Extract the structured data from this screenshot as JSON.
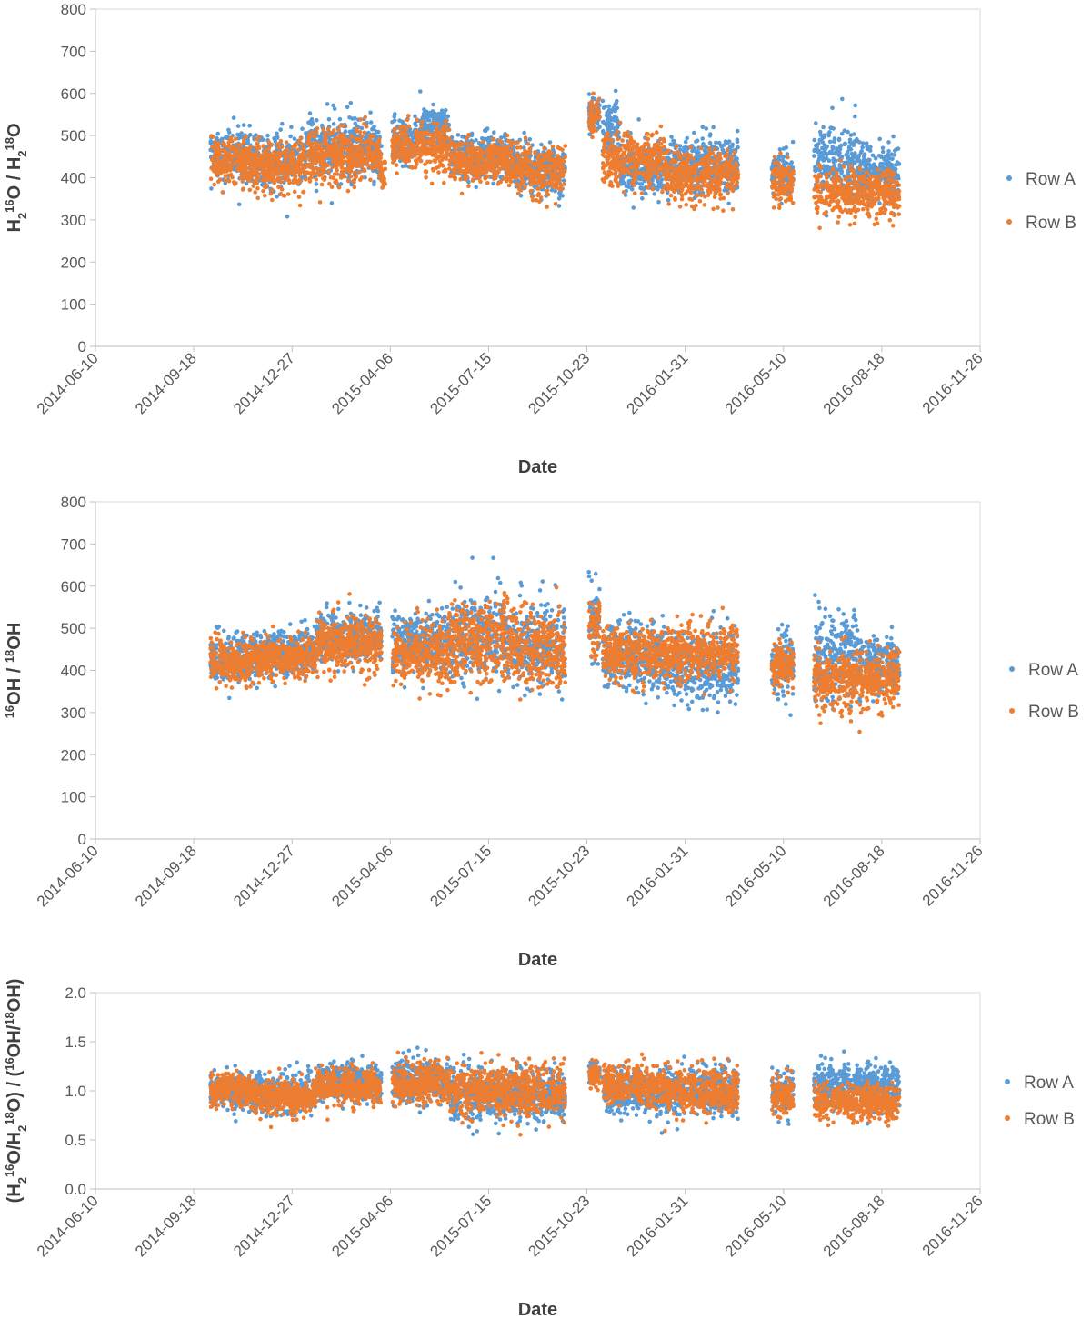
{
  "colors": {
    "row_a": "#5b9bd5",
    "row_b": "#ed7d31",
    "axis": "#d9d9d9",
    "text": "#595959"
  },
  "chart_data": [
    {
      "type": "scatter",
      "title": "",
      "xlabel": "Date",
      "ylabel_main": "H",
      "ylabel_sub": "2",
      "ylabel_sup": "16",
      "ylabel_mid": "O / H",
      "ylabel_sub2": "2",
      "ylabel_sup2": "18",
      "ylabel_end": "O",
      "x_ticks": [
        "2014-06-10",
        "2014-09-18",
        "2014-12-27",
        "2015-04-06",
        "2015-07-15",
        "2015-10-23",
        "2016-01-31",
        "2016-05-10",
        "2016-08-18",
        "2016-11-26"
      ],
      "y_ticks": [
        "0",
        "100",
        "200",
        "300",
        "400",
        "500",
        "600",
        "700",
        "800"
      ],
      "ylim": [
        0,
        800
      ],
      "xlim": [
        "2014-06-10",
        "2016-11-26"
      ],
      "legend": {
        "position": "right",
        "entries": [
          "Row A",
          "Row B"
        ]
      },
      "series": [
        {
          "name": "Row A",
          "segments": [
            {
              "start": "2014-10-05",
              "end": "2014-11-15",
              "mean": 455,
              "spread": 65
            },
            {
              "start": "2014-11-15",
              "end": "2015-01-10",
              "mean": 440,
              "spread": 70
            },
            {
              "start": "2015-01-10",
              "end": "2015-03-28",
              "mean": 470,
              "spread": 75
            },
            {
              "start": "2015-04-08",
              "end": "2015-05-05",
              "mean": 485,
              "spread": 60
            },
            {
              "start": "2015-05-05",
              "end": "2015-06-05",
              "mean": 520,
              "spread": 55
            },
            {
              "start": "2015-06-05",
              "end": "2015-08-10",
              "mean": 455,
              "spread": 55
            },
            {
              "start": "2015-08-10",
              "end": "2015-10-01",
              "mean": 420,
              "spread": 60
            },
            {
              "start": "2015-10-25",
              "end": "2015-11-05",
              "mean": 555,
              "spread": 40
            },
            {
              "start": "2015-11-08",
              "end": "2015-11-25",
              "mean": 520,
              "spread": 80
            },
            {
              "start": "2015-11-25",
              "end": "2016-01-10",
              "mean": 420,
              "spread": 70
            },
            {
              "start": "2016-01-10",
              "end": "2016-03-25",
              "mean": 430,
              "spread": 70
            },
            {
              "start": "2016-04-28",
              "end": "2016-05-20",
              "mean": 410,
              "spread": 60
            },
            {
              "start": "2016-06-10",
              "end": "2016-07-25",
              "mean": 440,
              "spread": 90
            },
            {
              "start": "2016-07-25",
              "end": "2016-09-05",
              "mean": 410,
              "spread": 70
            }
          ]
        },
        {
          "name": "Row B",
          "segments": [
            {
              "start": "2014-10-05",
              "end": "2014-11-15",
              "mean": 440,
              "spread": 60
            },
            {
              "start": "2014-11-15",
              "end": "2015-01-10",
              "mean": 425,
              "spread": 65
            },
            {
              "start": "2015-01-10",
              "end": "2015-03-28",
              "mean": 450,
              "spread": 70
            },
            {
              "start": "2015-03-28",
              "end": "2015-04-01",
              "mean": 400,
              "spread": 40
            },
            {
              "start": "2015-04-08",
              "end": "2015-06-05",
              "mean": 475,
              "spread": 60
            },
            {
              "start": "2015-06-05",
              "end": "2015-08-10",
              "mean": 435,
              "spread": 55
            },
            {
              "start": "2015-08-10",
              "end": "2015-10-01",
              "mean": 415,
              "spread": 60
            },
            {
              "start": "2015-10-25",
              "end": "2015-11-05",
              "mean": 545,
              "spread": 45
            },
            {
              "start": "2015-11-08",
              "end": "2016-01-10",
              "mean": 445,
              "spread": 70
            },
            {
              "start": "2016-01-10",
              "end": "2016-03-25",
              "mean": 405,
              "spread": 60
            },
            {
              "start": "2016-04-28",
              "end": "2016-05-20",
              "mean": 390,
              "spread": 55
            },
            {
              "start": "2016-06-10",
              "end": "2016-09-05",
              "mean": 365,
              "spread": 60
            }
          ]
        }
      ]
    },
    {
      "type": "scatter",
      "title": "",
      "xlabel": "Date",
      "ylabel_sup": "16",
      "ylabel_mid": "OH / ",
      "ylabel_sup2": "18",
      "ylabel_end": "OH",
      "x_ticks": [
        "2014-06-10",
        "2014-09-18",
        "2014-12-27",
        "2015-04-06",
        "2015-07-15",
        "2015-10-23",
        "2016-01-31",
        "2016-05-10",
        "2016-08-18",
        "2016-11-26"
      ],
      "y_ticks": [
        "0",
        "100",
        "200",
        "300",
        "400",
        "500",
        "600",
        "700",
        "800"
      ],
      "ylim": [
        0,
        800
      ],
      "xlim": [
        "2014-06-10",
        "2016-11-26"
      ],
      "legend": {
        "position": "right",
        "entries": [
          "Row A",
          "Row B"
        ]
      },
      "series": [
        {
          "name": "Row A",
          "segments": [
            {
              "start": "2014-10-05",
              "end": "2014-11-15",
              "mean": 430,
              "spread": 60
            },
            {
              "start": "2014-11-15",
              "end": "2015-01-20",
              "mean": 440,
              "spread": 60
            },
            {
              "start": "2015-01-20",
              "end": "2015-03-28",
              "mean": 480,
              "spread": 65
            },
            {
              "start": "2015-04-08",
              "end": "2015-06-05",
              "mean": 470,
              "spread": 75
            },
            {
              "start": "2015-06-05",
              "end": "2015-08-10",
              "mean": 480,
              "spread": 110
            },
            {
              "start": "2015-08-10",
              "end": "2015-10-01",
              "mean": 460,
              "spread": 100
            },
            {
              "start": "2015-10-25",
              "end": "2015-11-05",
              "mean": 520,
              "spread": 90
            },
            {
              "start": "2015-11-08",
              "end": "2016-01-10",
              "mean": 430,
              "spread": 80
            },
            {
              "start": "2016-01-10",
              "end": "2016-03-25",
              "mean": 410,
              "spread": 90
            },
            {
              "start": "2016-04-28",
              "end": "2016-05-20",
              "mean": 420,
              "spread": 90
            },
            {
              "start": "2016-06-10",
              "end": "2016-07-25",
              "mean": 440,
              "spread": 110
            },
            {
              "start": "2016-07-25",
              "end": "2016-09-05",
              "mean": 410,
              "spread": 80
            }
          ]
        },
        {
          "name": "Row B",
          "segments": [
            {
              "start": "2014-10-05",
              "end": "2014-11-15",
              "mean": 420,
              "spread": 55
            },
            {
              "start": "2014-11-15",
              "end": "2015-01-20",
              "mean": 430,
              "spread": 55
            },
            {
              "start": "2015-01-20",
              "end": "2015-03-28",
              "mean": 460,
              "spread": 70
            },
            {
              "start": "2015-04-08",
              "end": "2015-06-05",
              "mean": 440,
              "spread": 75
            },
            {
              "start": "2015-06-05",
              "end": "2015-08-10",
              "mean": 470,
              "spread": 110
            },
            {
              "start": "2015-08-10",
              "end": "2015-10-01",
              "mean": 450,
              "spread": 100
            },
            {
              "start": "2015-10-25",
              "end": "2015-11-05",
              "mean": 500,
              "spread": 80
            },
            {
              "start": "2015-11-08",
              "end": "2016-01-10",
              "mean": 440,
              "spread": 70
            },
            {
              "start": "2016-01-10",
              "end": "2016-03-25",
              "mean": 440,
              "spread": 70
            },
            {
              "start": "2016-04-28",
              "end": "2016-05-20",
              "mean": 410,
              "spread": 60
            },
            {
              "start": "2016-06-10",
              "end": "2016-09-05",
              "mean": 380,
              "spread": 75
            }
          ]
        }
      ]
    },
    {
      "type": "scatter",
      "title": "",
      "xlabel": "Date",
      "ylabel_main": "(H",
      "ylabel_sub": "2",
      "ylabel_sup": "16",
      "ylabel_mid": "O/H",
      "ylabel_sub2": "2",
      "ylabel_sup2": "18",
      "ylabel_mid2": "O) / (",
      "ylabel_sup3": "16",
      "ylabel_mid3": "OH/",
      "ylabel_sup4": "18",
      "ylabel_end": "OH)",
      "x_ticks": [
        "2014-06-10",
        "2014-09-18",
        "2014-12-27",
        "2015-04-06",
        "2015-07-15",
        "2015-10-23",
        "2016-01-31",
        "2016-05-10",
        "2016-08-18",
        "2016-11-26"
      ],
      "y_ticks": [
        "0.0",
        "0.5",
        "1.0",
        "1.5",
        "2.0"
      ],
      "ylim": [
        0,
        2
      ],
      "xlim": [
        "2014-06-10",
        "2016-11-26"
      ],
      "legend": {
        "position": "right",
        "entries": [
          "Row A",
          "Row B"
        ]
      },
      "series": [
        {
          "name": "Row A",
          "segments": [
            {
              "start": "2014-10-05",
              "end": "2014-11-15",
              "mean": 1.0,
              "spread": 0.2
            },
            {
              "start": "2014-11-15",
              "end": "2015-01-20",
              "mean": 0.97,
              "spread": 0.22
            },
            {
              "start": "2015-01-20",
              "end": "2015-03-28",
              "mean": 1.08,
              "spread": 0.2
            },
            {
              "start": "2015-04-08",
              "end": "2015-06-05",
              "mean": 1.1,
              "spread": 0.25
            },
            {
              "start": "2015-06-05",
              "end": "2015-10-01",
              "mean": 0.95,
              "spread": 0.3
            },
            {
              "start": "2015-10-25",
              "end": "2015-11-05",
              "mean": 1.2,
              "spread": 0.12
            },
            {
              "start": "2015-11-08",
              "end": "2016-01-10",
              "mean": 0.98,
              "spread": 0.25
            },
            {
              "start": "2016-01-10",
              "end": "2016-03-25",
              "mean": 1.0,
              "spread": 0.28
            },
            {
              "start": "2016-04-28",
              "end": "2016-05-20",
              "mean": 1.0,
              "spread": 0.25
            },
            {
              "start": "2016-06-10",
              "end": "2016-09-05",
              "mean": 1.05,
              "spread": 0.25
            }
          ]
        },
        {
          "name": "Row B",
          "segments": [
            {
              "start": "2014-10-05",
              "end": "2014-11-15",
              "mean": 1.02,
              "spread": 0.18
            },
            {
              "start": "2014-11-15",
              "end": "2015-01-20",
              "mean": 0.95,
              "spread": 0.2
            },
            {
              "start": "2015-01-20",
              "end": "2015-03-28",
              "mean": 1.05,
              "spread": 0.2
            },
            {
              "start": "2015-04-08",
              "end": "2015-06-05",
              "mean": 1.08,
              "spread": 0.22
            },
            {
              "start": "2015-06-05",
              "end": "2015-10-01",
              "mean": 1.0,
              "spread": 0.28
            },
            {
              "start": "2015-10-25",
              "end": "2015-11-05",
              "mean": 1.15,
              "spread": 0.12
            },
            {
              "start": "2015-11-08",
              "end": "2016-01-10",
              "mean": 1.05,
              "spread": 0.22
            },
            {
              "start": "2016-01-10",
              "end": "2016-03-25",
              "mean": 1.0,
              "spread": 0.25
            },
            {
              "start": "2016-04-28",
              "end": "2016-05-20",
              "mean": 0.95,
              "spread": 0.2
            },
            {
              "start": "2016-06-10",
              "end": "2016-09-05",
              "mean": 0.88,
              "spread": 0.2
            }
          ]
        }
      ]
    }
  ]
}
